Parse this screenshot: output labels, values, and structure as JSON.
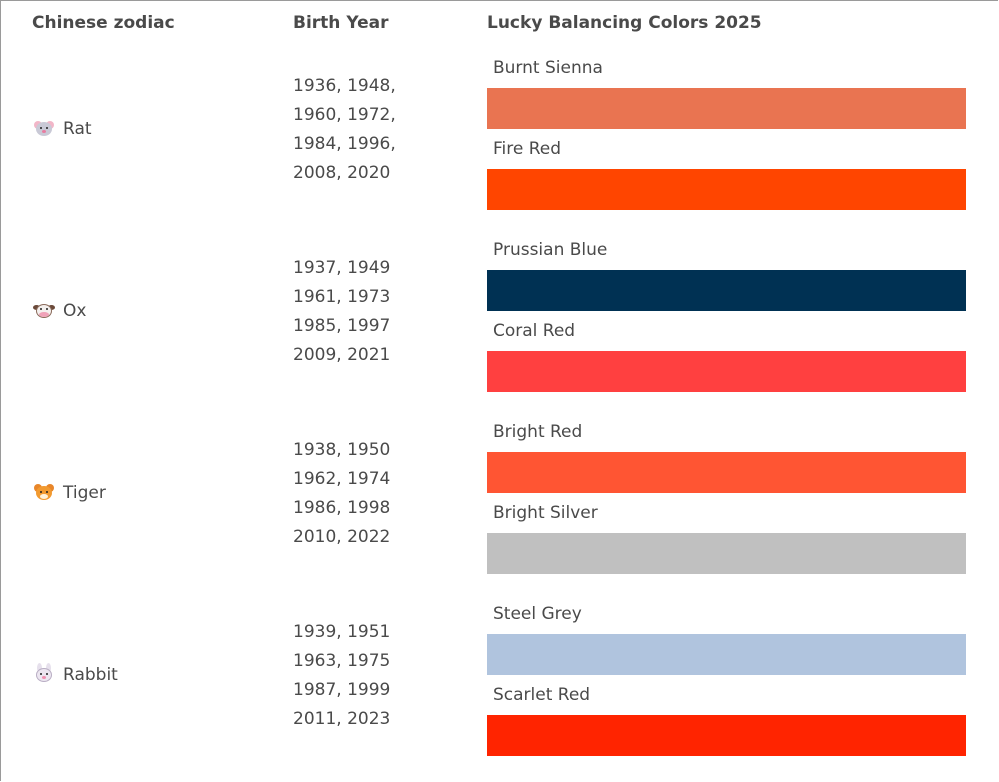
{
  "headers": {
    "zodiac": "Chinese zodiac",
    "years": "Birth Year",
    "colors": "Lucky Balancing Colors 2025"
  },
  "rows": [
    {
      "sign": "Rat",
      "icon": "rat-face-icon",
      "years": [
        "1936, 1948,",
        "1960, 1972,",
        "1984, 1996,",
        "2008, 2020"
      ],
      "colors": [
        {
          "name": "Burnt Sienna",
          "hex": "#E97451"
        },
        {
          "name": "Fire Red",
          "hex": "#FF4500"
        }
      ]
    },
    {
      "sign": "Ox",
      "icon": "cow-face-icon",
      "years": [
        "1937, 1949",
        "1961, 1973",
        "1985, 1997",
        "2009, 2021"
      ],
      "colors": [
        {
          "name": "Prussian Blue",
          "hex": "#003153"
        },
        {
          "name": "Coral Red",
          "hex": "#FF4040"
        }
      ]
    },
    {
      "sign": "Tiger",
      "icon": "tiger-face-icon",
      "years": [
        "1938, 1950",
        "1962, 1974",
        "1986, 1998",
        "2010, 2022"
      ],
      "colors": [
        {
          "name": "Bright Red",
          "hex": "#FF5533"
        },
        {
          "name": "Bright Silver",
          "hex": "#C0C0C0"
        }
      ]
    },
    {
      "sign": "Rabbit",
      "icon": "rabbit-face-icon",
      "years": [
        "1939, 1951",
        "1963, 1975",
        "1987, 1999",
        "2011, 2023"
      ],
      "colors": [
        {
          "name": "Steel Grey",
          "hex": "#B0C4DE"
        },
        {
          "name": "Scarlet Red",
          "hex": "#FF2400"
        }
      ]
    }
  ]
}
